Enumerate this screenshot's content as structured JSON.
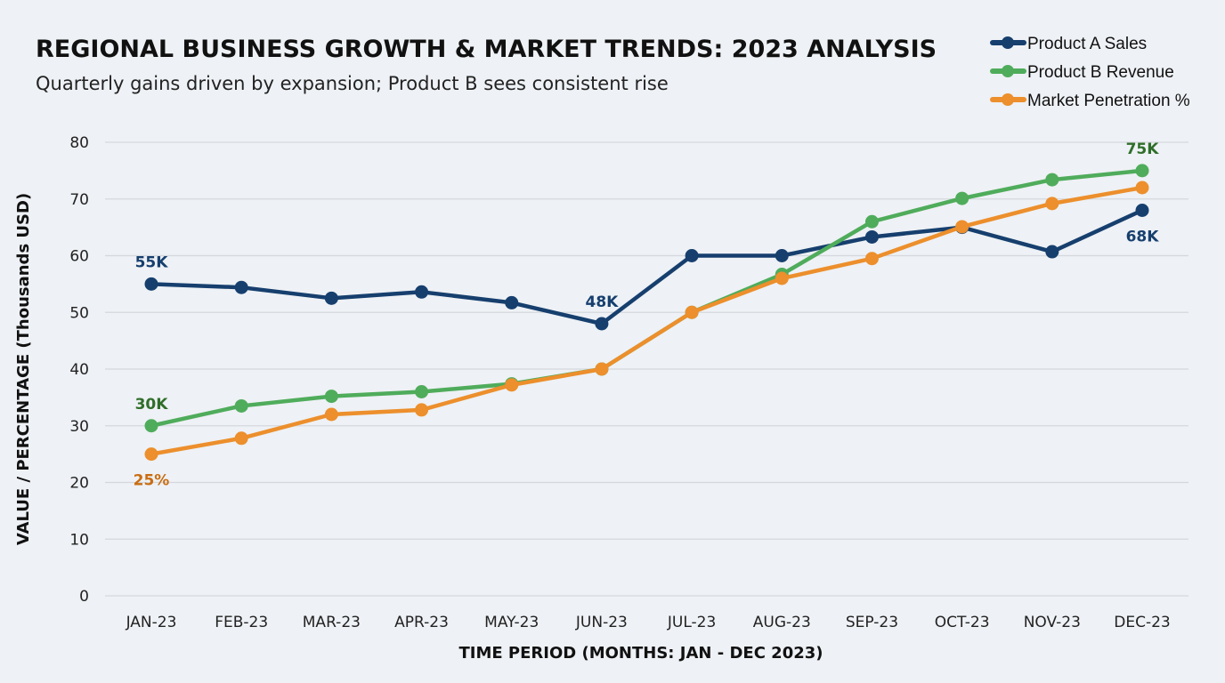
{
  "chart_data": {
    "type": "line",
    "title": "REGIONAL BUSINESS GROWTH & MARKET TRENDS: 2023 ANALYSIS",
    "subtitle": "Quarterly gains driven by expansion; Product B sees consistent rise",
    "xlabel": "TIME PERIOD (MONTHS: JAN - DEC 2023)",
    "ylabel": "VALUE / PERCENTAGE (Thousands USD)",
    "ylim": [
      0,
      80
    ],
    "yticks": [
      0,
      10,
      20,
      30,
      40,
      50,
      60,
      70,
      80
    ],
    "grid": true,
    "legend": "top-right",
    "categories": [
      "JAN-23",
      "FEB-23",
      "MAR-23",
      "APR-23",
      "MAY-23",
      "JUN-23",
      "JUL-23",
      "AUG-23",
      "SEP-23",
      "OCT-23",
      "NOV-23",
      "DEC-23"
    ],
    "series": [
      {
        "name": "Product A Sales",
        "color": "#163f6e",
        "label_color": "#163f6e",
        "values": [
          55,
          54.4,
          52.5,
          53.6,
          51.7,
          48,
          60,
          60,
          63.3,
          65,
          60.7,
          68
        ],
        "labels": [
          {
            "index": 0,
            "text": "55K",
            "pos": "above"
          },
          {
            "index": 5,
            "text": "48K",
            "pos": "above"
          },
          {
            "index": 11,
            "text": "68K",
            "pos": "below"
          }
        ]
      },
      {
        "name": "Product B Revenue",
        "color": "#4fac5b",
        "label_color": "#2f6e2a",
        "values": [
          30,
          33.5,
          35.2,
          36,
          37.4,
          40,
          50,
          56.7,
          66,
          70.1,
          73.4,
          75
        ],
        "labels": [
          {
            "index": 0,
            "text": "30K",
            "pos": "above"
          },
          {
            "index": 11,
            "text": "75K",
            "pos": "above"
          }
        ]
      },
      {
        "name": "Market Penetration %",
        "color": "#ec8f2c",
        "label_color": "#c96d12",
        "values": [
          25,
          27.8,
          32,
          32.8,
          37.2,
          40,
          50,
          56,
          59.5,
          65.1,
          69.2,
          72
        ],
        "labels": [
          {
            "index": 0,
            "text": "25%",
            "pos": "below"
          }
        ]
      }
    ]
  }
}
